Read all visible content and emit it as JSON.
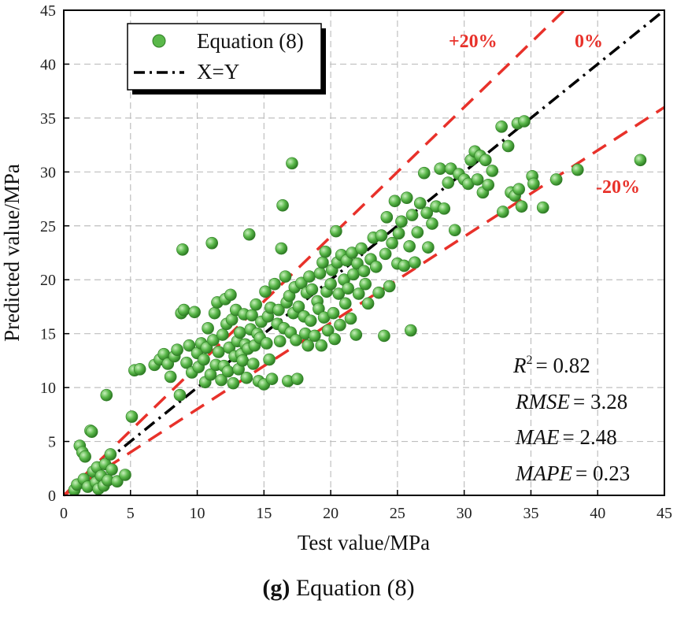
{
  "caption": {
    "letter": "(g)",
    "text": " Equation (8)"
  },
  "colors": {
    "point": "#5ab84a",
    "point_edge": "#2f7d25",
    "identity": "#000000",
    "band": "#e8312a",
    "grid": "#bfbfbf"
  },
  "metrics": [
    {
      "name": "R",
      "sup": "2",
      "value": "= 0.82"
    },
    {
      "name": "RMSE",
      "value": "= 3.28"
    },
    {
      "name": "MAE",
      "value": "= 2.48"
    },
    {
      "name": "MAPE",
      "value": "= 0.23"
    }
  ],
  "band_labels": {
    "plus": "+20%",
    "zero": "0%",
    "minus": "-20%"
  },
  "chart_data": {
    "type": "scatter",
    "title": "",
    "xlabel": "Test value/MPa",
    "ylabel": "Predicted value/MPa",
    "xlim": [
      0,
      45
    ],
    "ylim": [
      0,
      45
    ],
    "xticks": [
      "0",
      "5",
      "10",
      "15",
      "20",
      "25",
      "30",
      "35",
      "40",
      "45"
    ],
    "yticks": [
      "0",
      "5",
      "10",
      "15",
      "20",
      "25",
      "30",
      "35",
      "40",
      "45"
    ],
    "grid": true,
    "legend_position": "top-left",
    "series": [
      {
        "name": "Equation (8)",
        "kind": "points",
        "points": [
          [
            0.8,
            0.5
          ],
          [
            1.0,
            1.0
          ],
          [
            1.2,
            4.6
          ],
          [
            1.4,
            4.0
          ],
          [
            1.5,
            1.5
          ],
          [
            1.6,
            3.6
          ],
          [
            1.8,
            0.8
          ],
          [
            2.0,
            6.0
          ],
          [
            2.1,
            5.9
          ],
          [
            2.2,
            2.2
          ],
          [
            2.4,
            1.2
          ],
          [
            2.5,
            2.6
          ],
          [
            2.6,
            0.6
          ],
          [
            2.8,
            1.8
          ],
          [
            3.0,
            0.9
          ],
          [
            3.1,
            2.9
          ],
          [
            3.2,
            9.3
          ],
          [
            3.3,
            1.4
          ],
          [
            3.5,
            3.8
          ],
          [
            3.6,
            2.4
          ],
          [
            4.0,
            1.3
          ],
          [
            4.6,
            1.9
          ],
          [
            5.1,
            7.3
          ],
          [
            5.3,
            11.6
          ],
          [
            5.7,
            11.7
          ],
          [
            6.8,
            12.1
          ],
          [
            7.2,
            12.6
          ],
          [
            7.5,
            13.1
          ],
          [
            7.8,
            12.2
          ],
          [
            8.0,
            11.0
          ],
          [
            8.3,
            12.9
          ],
          [
            8.5,
            13.5
          ],
          [
            8.7,
            9.3
          ],
          [
            8.8,
            16.9
          ],
          [
            8.9,
            22.8
          ],
          [
            9.0,
            17.2
          ],
          [
            9.2,
            12.3
          ],
          [
            9.4,
            13.9
          ],
          [
            9.6,
            11.4
          ],
          [
            9.8,
            17.0
          ],
          [
            10.0,
            13.2
          ],
          [
            10.1,
            11.9
          ],
          [
            10.3,
            14.1
          ],
          [
            10.5,
            12.6
          ],
          [
            10.6,
            10.5
          ],
          [
            10.7,
            13.7
          ],
          [
            10.8,
            15.5
          ],
          [
            11.0,
            11.2
          ],
          [
            11.1,
            23.4
          ],
          [
            11.2,
            14.4
          ],
          [
            11.3,
            16.9
          ],
          [
            11.4,
            12.1
          ],
          [
            11.5,
            17.9
          ],
          [
            11.6,
            13.3
          ],
          [
            11.8,
            10.7
          ],
          [
            11.9,
            14.9
          ],
          [
            12.0,
            12.0
          ],
          [
            12.1,
            18.2
          ],
          [
            12.2,
            15.9
          ],
          [
            12.3,
            11.5
          ],
          [
            12.4,
            13.7
          ],
          [
            12.5,
            18.6
          ],
          [
            12.6,
            16.3
          ],
          [
            12.7,
            10.4
          ],
          [
            12.8,
            12.9
          ],
          [
            12.9,
            17.2
          ],
          [
            13.0,
            14.3
          ],
          [
            13.1,
            11.7
          ],
          [
            13.2,
            15.1
          ],
          [
            13.3,
            13.1
          ],
          [
            13.4,
            12.5
          ],
          [
            13.5,
            16.8
          ],
          [
            13.6,
            14.0
          ],
          [
            13.7,
            10.9
          ],
          [
            13.8,
            13.6
          ],
          [
            13.9,
            24.2
          ],
          [
            14.0,
            15.4
          ],
          [
            14.1,
            16.7
          ],
          [
            14.2,
            12.2
          ],
          [
            14.3,
            13.9
          ],
          [
            14.4,
            17.7
          ],
          [
            14.5,
            15.0
          ],
          [
            14.6,
            10.6
          ],
          [
            14.7,
            14.6
          ],
          [
            14.8,
            16.1
          ],
          [
            15.0,
            10.3
          ],
          [
            15.1,
            18.9
          ],
          [
            15.2,
            14.1
          ],
          [
            15.3,
            16.6
          ],
          [
            15.4,
            12.6
          ],
          [
            15.5,
            17.4
          ],
          [
            15.6,
            10.8
          ],
          [
            15.8,
            19.6
          ],
          [
            16.0,
            15.9
          ],
          [
            16.1,
            17.2
          ],
          [
            16.2,
            14.3
          ],
          [
            16.3,
            22.9
          ],
          [
            16.4,
            26.9
          ],
          [
            16.5,
            15.5
          ],
          [
            16.6,
            20.3
          ],
          [
            16.7,
            17.9
          ],
          [
            16.8,
            10.6
          ],
          [
            16.9,
            18.5
          ],
          [
            17.0,
            15.1
          ],
          [
            17.1,
            30.8
          ],
          [
            17.2,
            16.9
          ],
          [
            17.3,
            19.3
          ],
          [
            17.4,
            14.4
          ],
          [
            17.5,
            10.8
          ],
          [
            17.6,
            17.5
          ],
          [
            17.8,
            19.7
          ],
          [
            18.0,
            16.6
          ],
          [
            18.1,
            15.0
          ],
          [
            18.2,
            18.8
          ],
          [
            18.3,
            13.9
          ],
          [
            18.4,
            20.3
          ],
          [
            18.5,
            16.2
          ],
          [
            18.6,
            19.1
          ],
          [
            18.8,
            14.8
          ],
          [
            19.0,
            18.0
          ],
          [
            19.1,
            17.3
          ],
          [
            19.2,
            20.6
          ],
          [
            19.3,
            13.9
          ],
          [
            19.4,
            21.6
          ],
          [
            19.5,
            16.5
          ],
          [
            19.6,
            22.6
          ],
          [
            19.7,
            18.9
          ],
          [
            19.8,
            15.3
          ],
          [
            20.0,
            19.6
          ],
          [
            20.1,
            20.9
          ],
          [
            20.2,
            16.9
          ],
          [
            20.3,
            14.5
          ],
          [
            20.4,
            24.5
          ],
          [
            20.5,
            21.6
          ],
          [
            20.6,
            18.7
          ],
          [
            20.7,
            15.8
          ],
          [
            20.8,
            22.3
          ],
          [
            21.0,
            20.0
          ],
          [
            21.1,
            17.8
          ],
          [
            21.2,
            21.8
          ],
          [
            21.3,
            19.2
          ],
          [
            21.5,
            16.4
          ],
          [
            21.6,
            22.5
          ],
          [
            21.7,
            20.5
          ],
          [
            21.9,
            14.9
          ],
          [
            22.0,
            21.5
          ],
          [
            22.1,
            18.7
          ],
          [
            22.3,
            22.9
          ],
          [
            22.5,
            20.8
          ],
          [
            22.6,
            19.6
          ],
          [
            22.8,
            17.8
          ],
          [
            23.0,
            21.9
          ],
          [
            23.2,
            23.9
          ],
          [
            23.4,
            21.2
          ],
          [
            23.6,
            18.8
          ],
          [
            23.8,
            24.1
          ],
          [
            24.0,
            14.8
          ],
          [
            24.1,
            22.4
          ],
          [
            24.2,
            25.8
          ],
          [
            24.4,
            19.4
          ],
          [
            24.6,
            23.4
          ],
          [
            24.8,
            27.3
          ],
          [
            25.0,
            21.5
          ],
          [
            25.1,
            24.3
          ],
          [
            25.3,
            25.4
          ],
          [
            25.5,
            21.3
          ],
          [
            25.7,
            27.6
          ],
          [
            25.9,
            23.1
          ],
          [
            26.0,
            15.3
          ],
          [
            26.1,
            26.0
          ],
          [
            26.3,
            21.6
          ],
          [
            26.5,
            24.4
          ],
          [
            26.7,
            27.1
          ],
          [
            27.0,
            29.9
          ],
          [
            27.2,
            26.2
          ],
          [
            27.3,
            23.0
          ],
          [
            27.6,
            25.2
          ],
          [
            27.9,
            26.8
          ],
          [
            28.2,
            30.3
          ],
          [
            28.5,
            26.6
          ],
          [
            28.8,
            29.0
          ],
          [
            29.0,
            30.3
          ],
          [
            29.3,
            24.6
          ],
          [
            29.6,
            29.8
          ],
          [
            30.0,
            29.3
          ],
          [
            30.3,
            28.9
          ],
          [
            30.5,
            31.1
          ],
          [
            30.8,
            31.9
          ],
          [
            31.0,
            29.3
          ],
          [
            31.2,
            31.5
          ],
          [
            31.4,
            28.1
          ],
          [
            31.6,
            31.1
          ],
          [
            31.8,
            28.8
          ],
          [
            32.1,
            30.1
          ],
          [
            32.8,
            34.2
          ],
          [
            32.9,
            26.3
          ],
          [
            33.3,
            32.4
          ],
          [
            33.5,
            28.1
          ],
          [
            33.8,
            27.8
          ],
          [
            34.0,
            34.5
          ],
          [
            34.1,
            28.4
          ],
          [
            34.3,
            26.8
          ],
          [
            34.5,
            34.7
          ],
          [
            35.1,
            29.6
          ],
          [
            35.2,
            28.9
          ],
          [
            35.9,
            26.7
          ],
          [
            36.9,
            29.3
          ],
          [
            38.5,
            30.2
          ],
          [
            43.2,
            31.1
          ]
        ]
      },
      {
        "name": "X=Y",
        "kind": "line",
        "x": [
          0,
          45
        ],
        "y": [
          0,
          45
        ]
      },
      {
        "name": "+20%",
        "kind": "line",
        "x": [
          0,
          37.5
        ],
        "y": [
          0,
          45
        ]
      },
      {
        "name": "-20%",
        "kind": "line",
        "x": [
          0,
          45
        ],
        "y": [
          0,
          36
        ]
      }
    ]
  }
}
